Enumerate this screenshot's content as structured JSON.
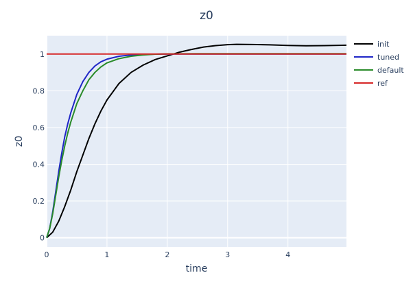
{
  "chart_data": {
    "type": "line",
    "title": "z0",
    "xlabel": "time",
    "ylabel": "z0",
    "xlim": [
      0,
      4.97
    ],
    "ylim": [
      -0.05,
      1.1
    ],
    "xticks": [
      0,
      1,
      2,
      3,
      4
    ],
    "yticks": [
      0,
      0.2,
      0.4,
      0.6,
      0.8,
      1
    ],
    "x_tick_labels": [
      "0",
      "1",
      "2",
      "3",
      "4"
    ],
    "y_tick_labels": [
      "0",
      "0.2",
      "0.4",
      "0.6",
      "0.8",
      "1"
    ],
    "grid": true,
    "legend_position": "top-right",
    "background_color": "#e5ecf6",
    "series": [
      {
        "name": "init",
        "color": "#000000",
        "x": [
          0,
          0.1,
          0.2,
          0.3,
          0.4,
          0.5,
          0.6,
          0.7,
          0.8,
          0.9,
          1.0,
          1.2,
          1.4,
          1.6,
          1.8,
          2.0,
          2.2,
          2.4,
          2.6,
          2.8,
          3.0,
          3.15,
          3.4,
          3.7,
          4.0,
          4.3,
          4.6,
          4.97
        ],
        "y": [
          0,
          0.03,
          0.09,
          0.17,
          0.26,
          0.36,
          0.45,
          0.54,
          0.62,
          0.69,
          0.75,
          0.84,
          0.9,
          0.94,
          0.97,
          0.99,
          1.01,
          1.025,
          1.038,
          1.046,
          1.051,
          1.053,
          1.052,
          1.05,
          1.047,
          1.045,
          1.046,
          1.048
        ]
      },
      {
        "name": "tuned",
        "color": "#1f26c7",
        "x": [
          0,
          0.05,
          0.1,
          0.15,
          0.2,
          0.25,
          0.3,
          0.35,
          0.4,
          0.5,
          0.6,
          0.7,
          0.8,
          0.9,
          1.0,
          1.2,
          1.4,
          1.6,
          1.8,
          2.0,
          2.5,
          3.0,
          3.5,
          4.0,
          4.5,
          4.97
        ],
        "y": [
          0,
          0.05,
          0.14,
          0.25,
          0.36,
          0.46,
          0.55,
          0.62,
          0.68,
          0.78,
          0.85,
          0.9,
          0.935,
          0.958,
          0.972,
          0.988,
          0.995,
          0.998,
          0.999,
          1.0,
          1.0,
          1.0,
          1.0,
          1.0,
          1.0,
          1.0
        ]
      },
      {
        "name": "default",
        "color": "#2a8b2a",
        "x": [
          0,
          0.05,
          0.1,
          0.15,
          0.2,
          0.25,
          0.3,
          0.35,
          0.4,
          0.5,
          0.6,
          0.7,
          0.8,
          0.9,
          1.0,
          1.2,
          1.4,
          1.6,
          1.8,
          2.0,
          2.5,
          3.0,
          3.5,
          4.0,
          4.5,
          4.97
        ],
        "y": [
          0,
          0.05,
          0.13,
          0.23,
          0.33,
          0.42,
          0.5,
          0.57,
          0.63,
          0.73,
          0.8,
          0.86,
          0.9,
          0.93,
          0.952,
          0.975,
          0.988,
          0.995,
          0.999,
          1.001,
          1.002,
          1.002,
          1.002,
          1.002,
          1.002,
          1.002
        ]
      },
      {
        "name": "ref",
        "color": "#d62728",
        "x": [
          0,
          4.97
        ],
        "y": [
          1,
          1
        ]
      }
    ]
  }
}
